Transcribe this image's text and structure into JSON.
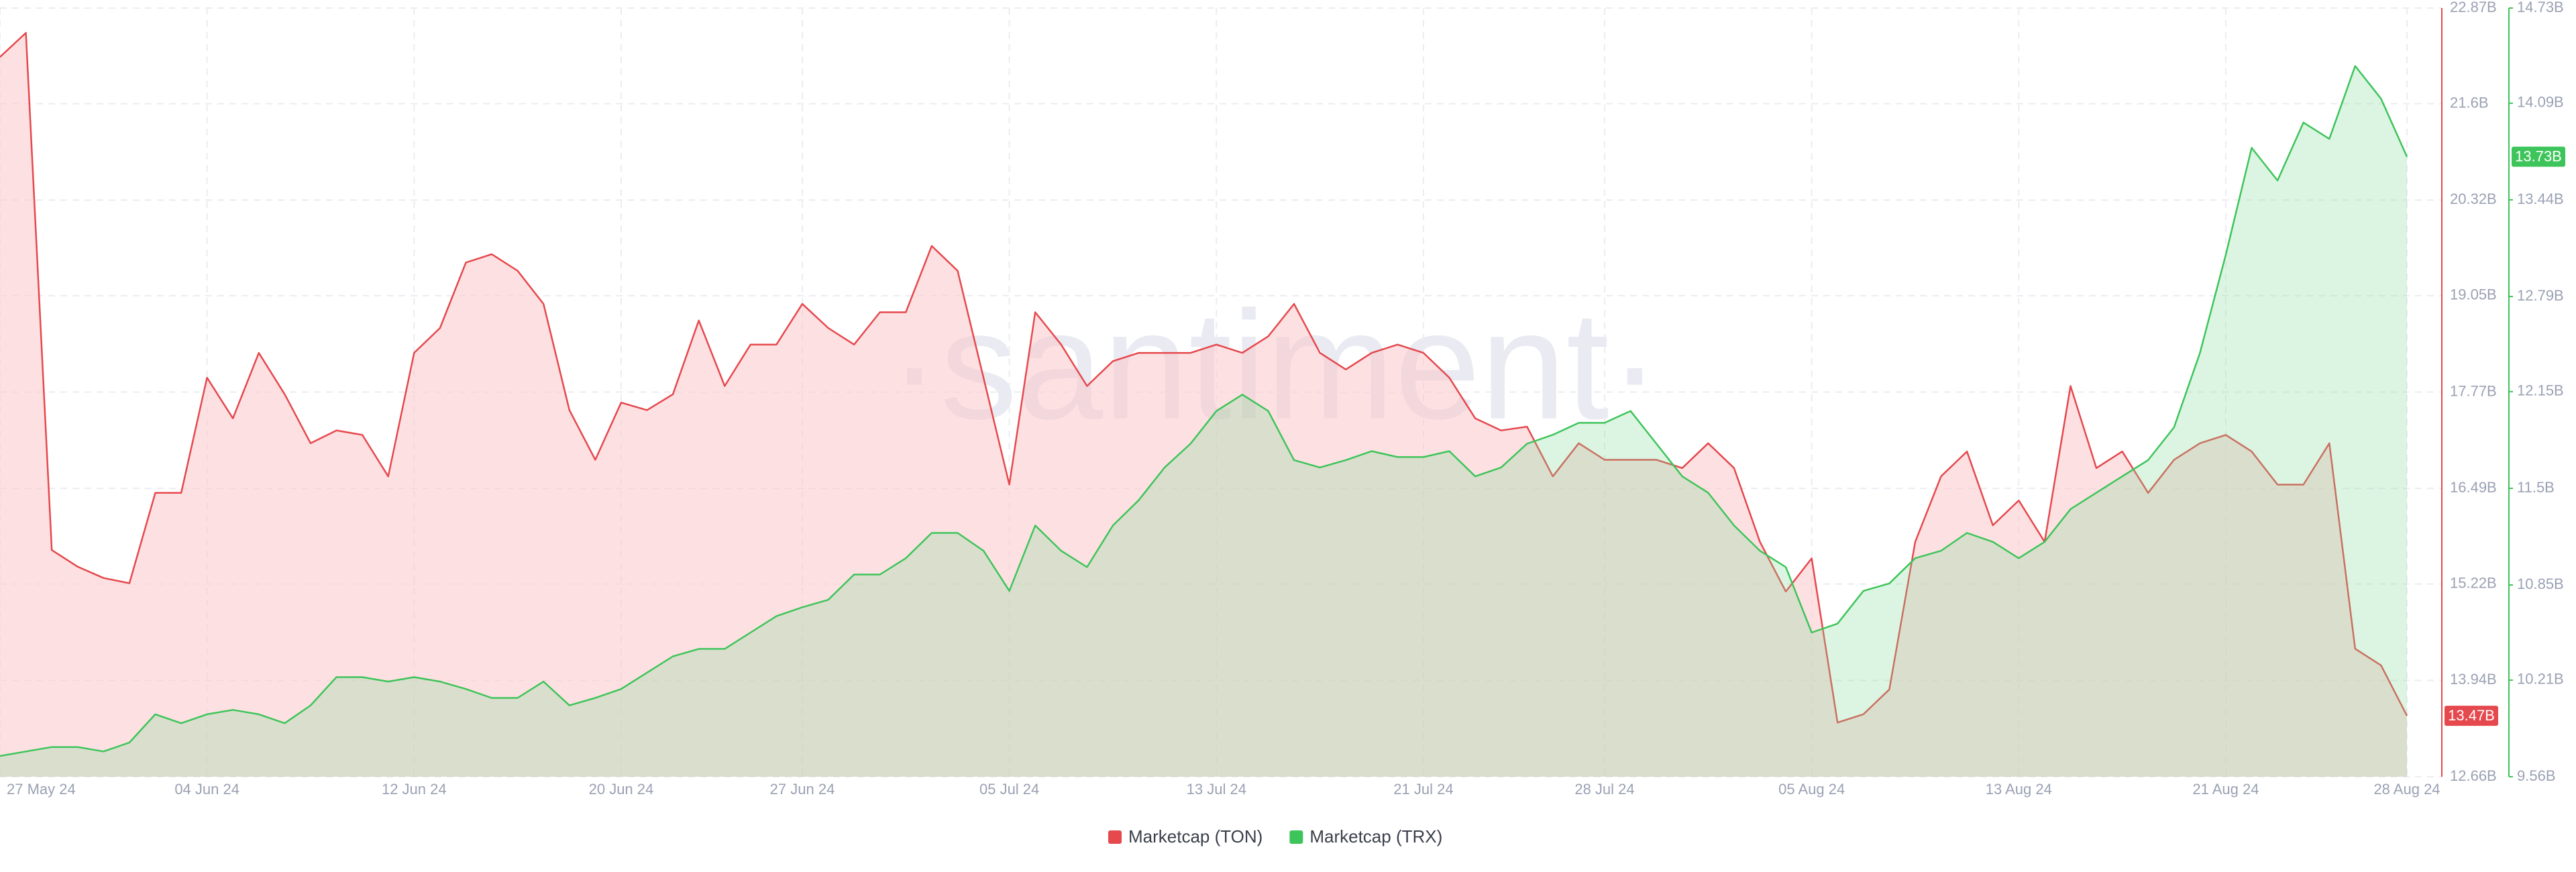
{
  "chart_data": {
    "type": "area",
    "watermark": "·santiment·",
    "categories": [
      "27 May 24",
      null,
      null,
      null,
      null,
      null,
      null,
      null,
      "04 Jun 24",
      null,
      null,
      null,
      null,
      null,
      null,
      null,
      "12 Jun 24",
      null,
      null,
      null,
      null,
      null,
      null,
      null,
      "20 Jun 24",
      null,
      null,
      null,
      null,
      null,
      null,
      "27 Jun 24",
      null,
      null,
      null,
      null,
      null,
      null,
      null,
      "05 Jul 24",
      null,
      null,
      null,
      null,
      null,
      null,
      null,
      "13 Jul 24",
      null,
      null,
      null,
      null,
      null,
      null,
      null,
      "21 Jul 24",
      null,
      null,
      null,
      null,
      null,
      null,
      "28 Jul 24",
      null,
      null,
      null,
      null,
      null,
      null,
      null,
      "05 Aug 24",
      null,
      null,
      null,
      null,
      null,
      null,
      null,
      "13 Aug 24",
      null,
      null,
      null,
      null,
      null,
      null,
      null,
      "21 Aug 24",
      null,
      null,
      null,
      null,
      null,
      null,
      "28 Aug 24"
    ],
    "series": [
      {
        "name": "Marketcap (TON)",
        "color": "#e5484d",
        "fill": "rgba(252,196,198,0.5)",
        "current_label": "13.47B",
        "values": [
          22.22,
          22.54,
          15.67,
          15.45,
          15.3,
          15.23,
          16.43,
          16.43,
          17.96,
          17.42,
          18.29,
          17.74,
          17.09,
          17.26,
          17.2,
          16.65,
          18.29,
          18.62,
          19.49,
          19.6,
          19.38,
          18.94,
          17.53,
          16.87,
          17.63,
          17.53,
          17.74,
          18.72,
          17.85,
          18.4,
          18.4,
          18.94,
          18.62,
          18.4,
          18.83,
          18.83,
          19.71,
          19.38,
          17.96,
          16.54,
          18.83,
          18.4,
          17.85,
          18.18,
          18.29,
          18.29,
          18.29,
          18.4,
          18.29,
          18.51,
          18.94,
          18.29,
          18.07,
          18.29,
          18.4,
          18.29,
          17.96,
          17.42,
          17.26,
          17.31,
          16.65,
          17.09,
          16.87,
          16.87,
          16.87,
          16.76,
          17.09,
          16.76,
          15.78,
          15.12,
          15.56,
          13.38,
          13.49,
          13.82,
          15.78,
          16.65,
          16.98,
          16.0,
          16.33,
          15.78,
          17.85,
          16.76,
          16.98,
          16.43,
          16.87,
          17.09,
          17.2,
          16.98,
          16.54,
          16.54,
          17.09,
          14.36,
          14.14,
          13.47
        ]
      },
      {
        "name": "Marketcap (TRX)",
        "color": "#3dc45a",
        "fill": "rgba(130,220,150,0.28)",
        "axis": "y2",
        "current_label": "13.73B",
        "values": [
          9.7,
          9.73,
          9.76,
          9.76,
          9.73,
          9.79,
          9.98,
          9.92,
          9.98,
          10.01,
          9.98,
          9.92,
          10.04,
          10.23,
          10.23,
          10.2,
          10.23,
          10.2,
          10.15,
          10.09,
          10.09,
          10.2,
          10.04,
          10.09,
          10.15,
          10.26,
          10.37,
          10.42,
          10.42,
          10.53,
          10.64,
          10.7,
          10.75,
          10.92,
          10.92,
          11.03,
          11.2,
          11.2,
          11.08,
          10.81,
          11.25,
          11.08,
          10.97,
          11.25,
          11.42,
          11.64,
          11.8,
          12.02,
          12.13,
          12.02,
          11.69,
          11.64,
          11.69,
          11.75,
          11.71,
          11.71,
          11.75,
          11.58,
          11.64,
          11.8,
          11.86,
          11.94,
          11.94,
          12.02,
          11.8,
          11.58,
          11.47,
          11.25,
          11.08,
          10.97,
          10.53,
          10.59,
          10.81,
          10.86,
          11.03,
          11.08,
          11.2,
          11.14,
          11.03,
          11.14,
          11.36,
          11.47,
          11.58,
          11.69,
          11.91,
          12.41,
          13.07,
          13.79,
          13.57,
          13.96,
          13.85,
          14.34,
          14.12,
          13.73
        ]
      }
    ],
    "ylim": [
      12.66,
      22.87
    ],
    "yticks": [
      {
        "value": 12.66,
        "label": "12.66B"
      },
      {
        "value": 13.94,
        "label": "13.94B"
      },
      {
        "value": 15.22,
        "label": "15.22B"
      },
      {
        "value": 16.49,
        "label": "16.49B"
      },
      {
        "value": 17.77,
        "label": "17.77B"
      },
      {
        "value": 19.05,
        "label": "19.05B"
      },
      {
        "value": 20.32,
        "label": "20.32B"
      },
      {
        "value": 21.6,
        "label": "21.6B"
      },
      {
        "value": 22.87,
        "label": "22.87B"
      }
    ],
    "y2lim": [
      9.56,
      14.73
    ],
    "y2ticks": [
      {
        "value": 9.56,
        "label": "9.56B"
      },
      {
        "value": 10.21,
        "label": "10.21B"
      },
      {
        "value": 10.85,
        "label": "10.85B"
      },
      {
        "value": 11.5,
        "label": "11.5B"
      },
      {
        "value": 12.15,
        "label": "12.15B"
      },
      {
        "value": 12.79,
        "label": "12.79B"
      },
      {
        "value": 13.44,
        "label": "13.44B"
      },
      {
        "value": 14.09,
        "label": "14.09B"
      },
      {
        "value": 14.73,
        "label": "14.73B"
      }
    ],
    "grid": true,
    "legend": "bottom"
  }
}
